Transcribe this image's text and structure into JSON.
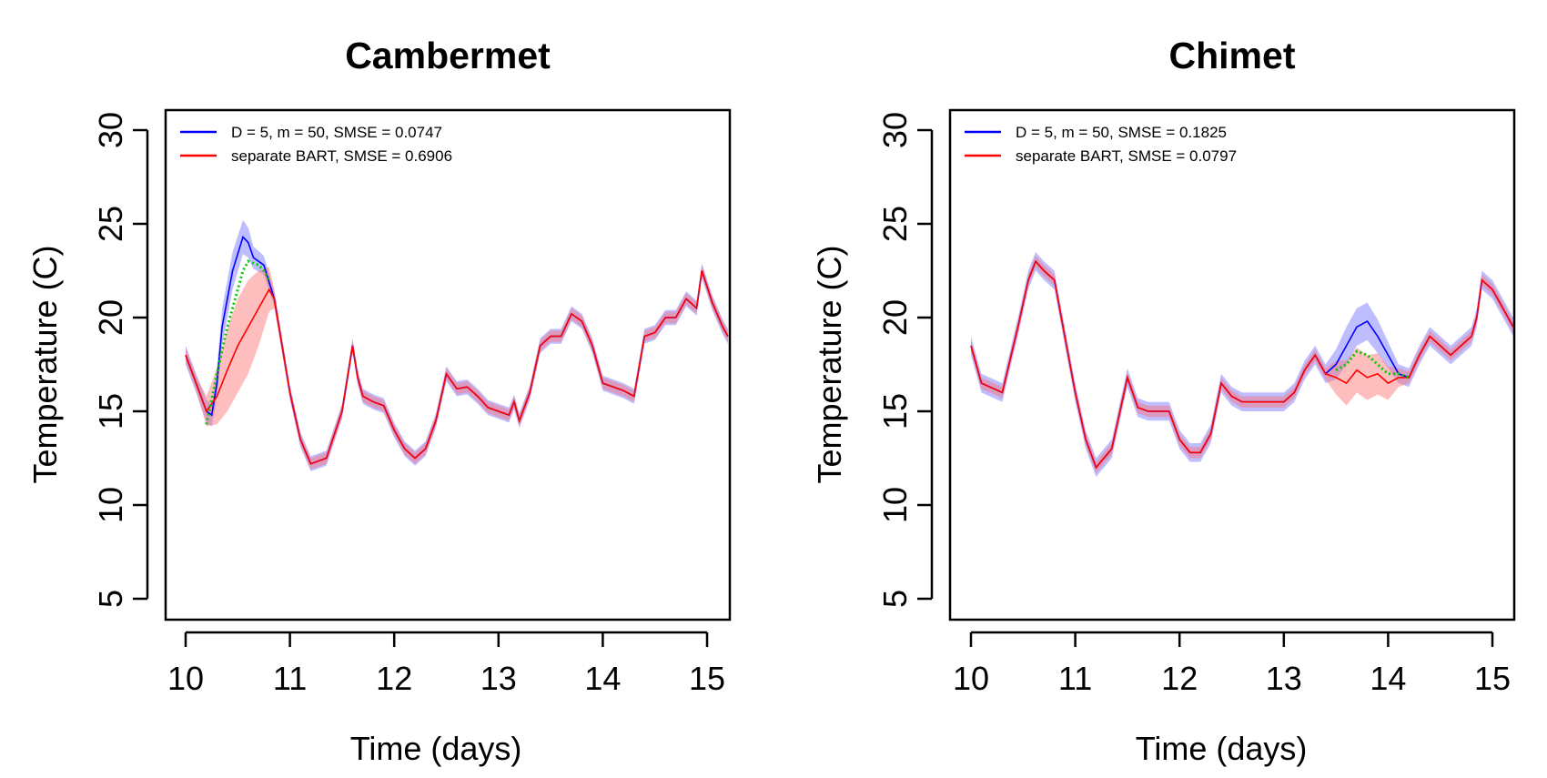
{
  "chart_data": [
    {
      "type": "line",
      "title": "Cambermet",
      "xlabel": "Time (days)",
      "ylabel": "Temperature (C)",
      "xlim": [
        9.8,
        15.2
      ],
      "ylim": [
        4,
        31
      ],
      "xticks": [
        10,
        11,
        12,
        13,
        14,
        15
      ],
      "yticks": [
        5,
        10,
        15,
        20,
        25,
        30
      ],
      "legend_position": "top-left",
      "legend": [
        {
          "label": "D = 5, m = 50, SMSE = 0.0747",
          "color": "#0000ff"
        },
        {
          "label": "separate BART, SMSE = 0.6906",
          "color": "#ff0000"
        }
      ],
      "series": [
        {
          "name": "D = 5, m = 50, SMSE = 0.0747",
          "color": "#0000ff",
          "x": [
            10.0,
            10.1,
            10.2,
            10.25,
            10.3,
            10.35,
            10.45,
            10.55,
            10.6,
            10.65,
            10.75,
            10.85,
            11.0,
            11.1,
            11.2,
            11.35,
            11.5,
            11.6,
            11.65,
            11.7,
            11.8,
            11.9,
            12.0,
            12.1,
            12.2,
            12.3,
            12.4,
            12.5,
            12.6,
            12.7,
            12.8,
            12.9,
            13.0,
            13.1,
            13.15,
            13.2,
            13.3,
            13.4,
            13.5,
            13.6,
            13.7,
            13.8,
            13.9,
            14.0,
            14.1,
            14.2,
            14.3,
            14.4,
            14.5,
            14.6,
            14.7,
            14.8,
            14.9,
            14.95,
            15.05,
            15.15,
            15.2
          ],
          "y": [
            18.0,
            16.5,
            15.0,
            14.8,
            16.5,
            19.5,
            22.5,
            24.3,
            24.0,
            23.2,
            22.8,
            21.0,
            16.0,
            13.5,
            12.2,
            12.5,
            15.0,
            18.5,
            16.8,
            15.8,
            15.5,
            15.3,
            14.0,
            13.0,
            12.5,
            13.0,
            14.5,
            17.0,
            16.2,
            16.3,
            15.8,
            15.2,
            15.0,
            14.8,
            15.5,
            14.5,
            16.0,
            18.5,
            19.0,
            19.0,
            20.2,
            19.8,
            18.5,
            16.5,
            16.3,
            16.1,
            15.8,
            19.0,
            19.2,
            20.0,
            20.0,
            21.0,
            20.5,
            22.5,
            20.8,
            19.5,
            19.0
          ],
          "band_width": [
            0.5,
            0.5,
            0.6,
            0.6,
            0.8,
            1.0,
            1.0,
            0.9,
            0.8,
            0.6,
            0.5,
            0.4,
            0.4,
            0.4,
            0.4,
            0.4,
            0.4,
            0.4,
            0.4,
            0.4,
            0.4,
            0.4,
            0.4,
            0.4,
            0.4,
            0.4,
            0.4,
            0.4,
            0.4,
            0.4,
            0.4,
            0.4,
            0.4,
            0.4,
            0.4,
            0.4,
            0.4,
            0.4,
            0.4,
            0.4,
            0.4,
            0.4,
            0.4,
            0.4,
            0.4,
            0.4,
            0.4,
            0.4,
            0.4,
            0.4,
            0.4,
            0.4,
            0.4,
            0.4,
            0.4,
            0.4,
            0.4
          ]
        },
        {
          "name": "separate BART, SMSE = 0.6906",
          "color": "#ff0000",
          "x": [
            10.0,
            10.1,
            10.2,
            10.3,
            10.4,
            10.5,
            10.6,
            10.7,
            10.8,
            10.85,
            11.0,
            11.1,
            11.2,
            11.35,
            11.5,
            11.6,
            11.65,
            11.7,
            11.8,
            11.9,
            12.0,
            12.1,
            12.2,
            12.3,
            12.4,
            12.5,
            12.6,
            12.7,
            12.8,
            12.9,
            13.0,
            13.1,
            13.15,
            13.2,
            13.3,
            13.4,
            13.5,
            13.6,
            13.7,
            13.8,
            13.9,
            14.0,
            14.1,
            14.2,
            14.3,
            14.4,
            14.5,
            14.6,
            14.7,
            14.8,
            14.9,
            14.95,
            15.05,
            15.15,
            15.2
          ],
          "y": [
            18.0,
            16.5,
            15.0,
            15.8,
            17.2,
            18.5,
            19.5,
            20.5,
            21.5,
            21.0,
            16.0,
            13.5,
            12.2,
            12.5,
            15.0,
            18.5,
            16.8,
            15.8,
            15.5,
            15.3,
            14.0,
            13.0,
            12.5,
            13.0,
            14.5,
            17.0,
            16.2,
            16.3,
            15.8,
            15.2,
            15.0,
            14.8,
            15.5,
            14.5,
            16.0,
            18.5,
            19.0,
            19.0,
            20.2,
            19.8,
            18.5,
            16.5,
            16.3,
            16.1,
            15.8,
            19.0,
            19.2,
            20.0,
            20.0,
            21.0,
            20.5,
            22.5,
            20.8,
            19.5,
            19.0
          ],
          "band_width": [
            0.4,
            0.4,
            0.8,
            1.5,
            2.2,
            2.5,
            2.5,
            2.0,
            1.2,
            0.5,
            0.3,
            0.3,
            0.3,
            0.3,
            0.3,
            0.3,
            0.3,
            0.3,
            0.3,
            0.3,
            0.3,
            0.3,
            0.3,
            0.3,
            0.3,
            0.3,
            0.3,
            0.3,
            0.3,
            0.3,
            0.3,
            0.3,
            0.3,
            0.3,
            0.3,
            0.3,
            0.3,
            0.3,
            0.3,
            0.3,
            0.3,
            0.3,
            0.3,
            0.3,
            0.3,
            0.3,
            0.3,
            0.3,
            0.3,
            0.3,
            0.3,
            0.3,
            0.3,
            0.3,
            0.3
          ]
        },
        {
          "color": "#00cc00",
          "style": "dotted",
          "x": [
            10.2,
            10.3,
            10.4,
            10.5,
            10.55,
            10.6,
            10.7,
            10.75,
            10.8
          ],
          "y": [
            14.3,
            17.0,
            19.5,
            21.5,
            22.5,
            23.0,
            22.8,
            22.5,
            22.0
          ]
        }
      ]
    },
    {
      "type": "line",
      "title": "Chimet",
      "xlabel": "Time (days)",
      "ylabel": "Temperature (C)",
      "xlim": [
        9.8,
        15.2
      ],
      "ylim": [
        4,
        31
      ],
      "xticks": [
        10,
        11,
        12,
        13,
        14,
        15
      ],
      "yticks": [
        5,
        10,
        15,
        20,
        25,
        30
      ],
      "legend_position": "top-left",
      "legend": [
        {
          "label": "D = 5, m = 50, SMSE = 0.1825",
          "color": "#0000ff"
        },
        {
          "label": "separate BART, SMSE = 0.0797",
          "color": "#ff0000"
        }
      ],
      "series": [
        {
          "name": "D = 5, m = 50, SMSE = 0.1825",
          "color": "#0000ff",
          "x": [
            10.0,
            10.1,
            10.3,
            10.45,
            10.55,
            10.62,
            10.7,
            10.8,
            10.9,
            11.0,
            11.1,
            11.2,
            11.35,
            11.5,
            11.6,
            11.7,
            11.8,
            11.9,
            12.0,
            12.1,
            12.2,
            12.3,
            12.4,
            12.5,
            12.6,
            12.7,
            12.8,
            12.9,
            13.0,
            13.1,
            13.2,
            13.3,
            13.4,
            13.5,
            13.6,
            13.7,
            13.8,
            13.9,
            14.0,
            14.1,
            14.2,
            14.3,
            14.4,
            14.5,
            14.6,
            14.7,
            14.8,
            14.85,
            14.9,
            15.0,
            15.1,
            15.2
          ],
          "y": [
            18.5,
            16.5,
            16.0,
            19.5,
            22.0,
            23.0,
            22.5,
            22.0,
            19.0,
            16.0,
            13.5,
            12.0,
            13.0,
            16.8,
            15.2,
            15.0,
            15.0,
            15.0,
            13.5,
            12.8,
            12.8,
            13.8,
            16.5,
            15.8,
            15.5,
            15.5,
            15.5,
            15.5,
            15.5,
            16.0,
            17.2,
            18.0,
            17.0,
            17.5,
            18.5,
            19.5,
            19.8,
            19.0,
            18.0,
            17.0,
            16.8,
            18.0,
            19.0,
            18.5,
            18.0,
            18.5,
            19.0,
            20.0,
            22.0,
            21.5,
            20.5,
            19.5
          ],
          "band_width": [
            0.5,
            0.5,
            0.5,
            0.5,
            0.5,
            0.5,
            0.5,
            0.5,
            0.5,
            0.5,
            0.5,
            0.5,
            0.5,
            0.5,
            0.5,
            0.5,
            0.5,
            0.5,
            0.5,
            0.5,
            0.5,
            0.5,
            0.5,
            0.5,
            0.5,
            0.5,
            0.5,
            0.5,
            0.5,
            0.5,
            0.5,
            0.5,
            0.5,
            0.8,
            1.0,
            1.0,
            1.0,
            0.9,
            0.7,
            0.5,
            0.5,
            0.5,
            0.5,
            0.5,
            0.5,
            0.5,
            0.5,
            0.5,
            0.5,
            0.5,
            0.5,
            0.5
          ]
        },
        {
          "name": "separate BART, SMSE = 0.0797",
          "color": "#ff0000",
          "x": [
            10.0,
            10.1,
            10.3,
            10.45,
            10.55,
            10.62,
            10.7,
            10.8,
            10.9,
            11.0,
            11.1,
            11.2,
            11.35,
            11.5,
            11.6,
            11.7,
            11.8,
            11.9,
            12.0,
            12.1,
            12.2,
            12.3,
            12.4,
            12.5,
            12.6,
            12.7,
            12.8,
            12.9,
            13.0,
            13.1,
            13.2,
            13.3,
            13.4,
            13.5,
            13.6,
            13.7,
            13.8,
            13.9,
            14.0,
            14.1,
            14.2,
            14.3,
            14.4,
            14.5,
            14.6,
            14.7,
            14.8,
            14.85,
            14.9,
            15.0,
            15.1,
            15.2
          ],
          "y": [
            18.5,
            16.5,
            16.0,
            19.5,
            22.0,
            23.0,
            22.5,
            22.0,
            19.0,
            16.0,
            13.5,
            12.0,
            13.0,
            16.8,
            15.2,
            15.0,
            15.0,
            15.0,
            13.5,
            12.8,
            12.8,
            13.8,
            16.5,
            15.8,
            15.5,
            15.5,
            15.5,
            15.5,
            15.5,
            16.0,
            17.2,
            18.0,
            17.0,
            16.8,
            16.5,
            17.2,
            16.8,
            17.0,
            16.5,
            16.8,
            16.8,
            18.0,
            19.0,
            18.5,
            18.0,
            18.5,
            19.0,
            20.0,
            22.0,
            21.5,
            20.5,
            19.5
          ],
          "band_width": [
            0.3,
            0.3,
            0.3,
            0.3,
            0.3,
            0.3,
            0.3,
            0.3,
            0.3,
            0.3,
            0.3,
            0.3,
            0.3,
            0.3,
            0.3,
            0.3,
            0.3,
            0.3,
            0.3,
            0.3,
            0.3,
            0.3,
            0.3,
            0.3,
            0.3,
            0.3,
            0.3,
            0.3,
            0.3,
            0.3,
            0.3,
            0.3,
            0.3,
            0.9,
            1.2,
            1.2,
            1.2,
            1.1,
            0.9,
            0.5,
            0.3,
            0.3,
            0.3,
            0.3,
            0.3,
            0.3,
            0.3,
            0.3,
            0.3,
            0.3,
            0.3,
            0.3
          ]
        },
        {
          "color": "#00cc00",
          "style": "dotted",
          "x": [
            13.5,
            13.6,
            13.7,
            13.8,
            13.9,
            14.0,
            14.1,
            14.2
          ],
          "y": [
            17.2,
            17.5,
            18.2,
            18.0,
            17.5,
            17.0,
            17.0,
            16.8
          ]
        }
      ]
    }
  ]
}
